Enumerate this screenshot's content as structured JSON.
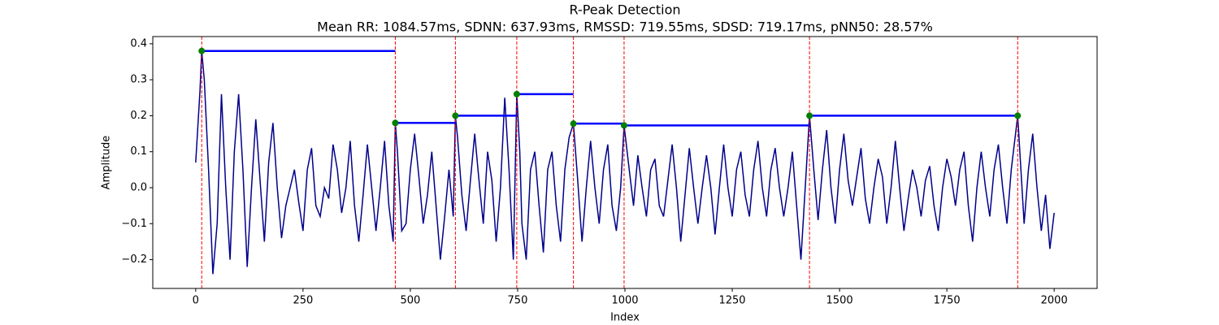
{
  "chart_data": {
    "type": "line",
    "title": "R-Peak Detection",
    "subtitle": "Mean RR: 1084.57ms, SDNN: 637.93ms, RMSSD: 719.55ms, SDSD: 719.17ms, pNN50: 28.57%",
    "xlabel": "Index",
    "ylabel": "Amplitude",
    "xlim": [
      -100,
      2100
    ],
    "ylim": [
      -0.28,
      0.42
    ],
    "xticks": [
      0,
      250,
      500,
      750,
      1000,
      1250,
      1500,
      1750,
      2000
    ],
    "yticks": [
      {
        "value": -0.2,
        "label": "−0.2"
      },
      {
        "value": -0.1,
        "label": "−0.1"
      },
      {
        "value": 0,
        "label": "0.0"
      },
      0.1,
      0.2,
      0.3,
      0.4
    ],
    "series": [
      {
        "color": "#00008b",
        "x": [
          0,
          10,
          14,
          20,
          30,
          40,
          50,
          60,
          70,
          80,
          90,
          100,
          110,
          120,
          130,
          140,
          150,
          160,
          170,
          180,
          190,
          200,
          210,
          220,
          230,
          240,
          250,
          260,
          270,
          280,
          290,
          300,
          310,
          320,
          330,
          340,
          350,
          360,
          370,
          380,
          390,
          400,
          410,
          420,
          430,
          440,
          450,
          460,
          465,
          470,
          480,
          490,
          500,
          510,
          520,
          530,
          540,
          550,
          560,
          570,
          580,
          590,
          600,
          605,
          610,
          620,
          630,
          640,
          650,
          660,
          670,
          680,
          690,
          700,
          710,
          720,
          730,
          740,
          748,
          755,
          760,
          770,
          780,
          790,
          800,
          810,
          820,
          830,
          840,
          850,
          860,
          870,
          880,
          890,
          900,
          910,
          920,
          930,
          940,
          950,
          960,
          970,
          980,
          990,
          998,
          1010,
          1020,
          1030,
          1040,
          1050,
          1060,
          1070,
          1080,
          1090,
          1100,
          1110,
          1120,
          1130,
          1140,
          1150,
          1160,
          1170,
          1180,
          1190,
          1200,
          1210,
          1220,
          1230,
          1240,
          1250,
          1260,
          1270,
          1280,
          1290,
          1300,
          1310,
          1320,
          1330,
          1340,
          1350,
          1360,
          1370,
          1380,
          1390,
          1400,
          1410,
          1420,
          1430,
          1440,
          1450,
          1460,
          1470,
          1480,
          1490,
          1500,
          1510,
          1520,
          1530,
          1540,
          1550,
          1560,
          1570,
          1580,
          1590,
          1600,
          1610,
          1620,
          1630,
          1640,
          1650,
          1660,
          1670,
          1680,
          1690,
          1700,
          1710,
          1720,
          1730,
          1740,
          1750,
          1760,
          1770,
          1780,
          1790,
          1800,
          1810,
          1820,
          1830,
          1840,
          1850,
          1860,
          1870,
          1880,
          1890,
          1900,
          1915,
          1920,
          1930,
          1940,
          1950,
          1960,
          1970,
          1980,
          1990,
          2000
        ],
        "values": [
          0.07,
          0.27,
          0.38,
          0.3,
          0.05,
          -0.24,
          -0.1,
          0.26,
          0.0,
          -0.2,
          0.1,
          0.26,
          0.05,
          -0.22,
          0.0,
          0.19,
          0.02,
          -0.15,
          0.07,
          0.18,
          0.0,
          -0.14,
          -0.05,
          0.0,
          0.05,
          -0.04,
          -0.12,
          0.05,
          0.11,
          -0.05,
          -0.08,
          0.0,
          -0.03,
          0.12,
          0.05,
          -0.07,
          0.0,
          0.13,
          -0.05,
          -0.15,
          -0.02,
          0.12,
          0.0,
          -0.12,
          0.0,
          0.13,
          -0.05,
          -0.15,
          0.18,
          0.1,
          -0.12,
          -0.1,
          0.05,
          0.15,
          0.03,
          -0.1,
          -0.02,
          0.1,
          -0.05,
          -0.2,
          -0.08,
          0.05,
          -0.08,
          0.2,
          0.14,
          -0.02,
          -0.12,
          0.02,
          0.15,
          0.02,
          -0.1,
          0.1,
          0.02,
          -0.15,
          0.0,
          0.25,
          0.05,
          -0.2,
          0.26,
          0.1,
          -0.1,
          -0.2,
          0.05,
          0.1,
          -0.05,
          -0.18,
          0.05,
          0.1,
          -0.05,
          -0.15,
          0.05,
          0.14,
          0.178,
          0.02,
          -0.15,
          0.0,
          0.13,
          0.0,
          -0.1,
          0.05,
          0.12,
          -0.05,
          -0.12,
          0.0,
          0.173,
          0.05,
          -0.05,
          0.09,
          0.0,
          -0.08,
          0.05,
          0.08,
          -0.05,
          -0.08,
          0.02,
          0.12,
          0.0,
          -0.15,
          -0.02,
          0.11,
          0.0,
          -0.1,
          0.0,
          0.09,
          0.0,
          -0.13,
          0.0,
          0.12,
          0.0,
          -0.08,
          0.05,
          0.1,
          -0.02,
          -0.08,
          0.05,
          0.13,
          0.0,
          -0.08,
          0.05,
          0.11,
          0.0,
          -0.08,
          0.0,
          0.1,
          -0.05,
          -0.2,
          0.0,
          0.2,
          0.05,
          -0.09,
          0.05,
          0.16,
          0.0,
          -0.1,
          0.05,
          0.15,
          0.02,
          -0.05,
          0.03,
          0.11,
          -0.03,
          -0.1,
          0.0,
          0.08,
          0.03,
          -0.1,
          0.0,
          0.13,
          0.0,
          -0.12,
          -0.03,
          0.05,
          0.0,
          -0.08,
          0.02,
          0.06,
          -0.05,
          -0.12,
          0.0,
          0.08,
          0.03,
          -0.05,
          0.05,
          0.1,
          -0.05,
          -0.15,
          0.0,
          0.1,
          0.0,
          -0.08,
          0.05,
          0.12,
          0.0,
          -0.1,
          0.05,
          0.2,
          0.1,
          -0.1,
          0.05,
          0.15,
          0.0,
          -0.12,
          -0.02,
          -0.17,
          -0.07
        ]
      }
    ],
    "peaks": {
      "color": "green",
      "rr_color": "blue",
      "line_color": "red",
      "x": [
        14,
        465,
        605,
        748,
        880,
        998,
        1430,
        1915
      ],
      "values": [
        0.38,
        0.18,
        0.2,
        0.26,
        0.178,
        0.173,
        0.2,
        0.2
      ]
    }
  }
}
